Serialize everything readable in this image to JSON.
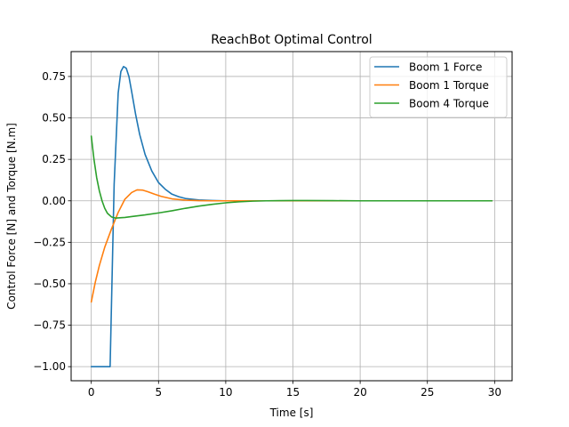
{
  "chart_data": {
    "type": "line",
    "title": "ReachBot Optimal Control",
    "xlabel": "Time [s]",
    "ylabel": "Control Force [N] and Torque [N.m]",
    "xlim": [
      -1.5,
      31.3
    ],
    "ylim": [
      -1.085,
      0.9
    ],
    "xticks": [
      0,
      5,
      10,
      15,
      20,
      25,
      30
    ],
    "xtick_labels": [
      "0",
      "5",
      "10",
      "15",
      "20",
      "25",
      "30"
    ],
    "yticks": [
      -1.0,
      -0.75,
      -0.5,
      -0.25,
      0.0,
      0.25,
      0.5,
      0.75
    ],
    "ytick_labels": [
      "−1.00",
      "−0.75",
      "−0.50",
      "−0.25",
      "0.00",
      "0.25",
      "0.50",
      "0.75"
    ],
    "grid": true,
    "legend": "top-right",
    "series": [
      {
        "name": "Boom 1 Force",
        "color": "#1f77b4",
        "x": [
          0,
          0.5,
          1.0,
          1.4,
          1.7,
          2.0,
          2.2,
          2.4,
          2.6,
          2.8,
          3.0,
          3.3,
          3.6,
          4.0,
          4.5,
          5.0,
          5.5,
          6.0,
          6.5,
          7.0,
          8.0,
          9.0,
          10.0,
          12.0,
          15.0,
          20.0,
          25.0,
          29.8
        ],
        "y": [
          -1.0,
          -1.0,
          -1.0,
          -1.0,
          0.1,
          0.65,
          0.78,
          0.81,
          0.8,
          0.75,
          0.66,
          0.52,
          0.4,
          0.28,
          0.18,
          0.11,
          0.07,
          0.04,
          0.025,
          0.014,
          0.005,
          0.002,
          0.0,
          0.0,
          0.0,
          0.0,
          0.0,
          0.0
        ]
      },
      {
        "name": "Boom 1 Torque",
        "color": "#ff7f0e",
        "x": [
          0,
          0.3,
          0.6,
          1.0,
          1.5,
          2.0,
          2.5,
          3.0,
          3.4,
          3.8,
          4.2,
          4.7,
          5.2,
          6.0,
          7.0,
          8.0,
          9.0,
          10.0,
          12.0,
          15.0,
          20.0,
          25.0,
          29.8
        ],
        "y": [
          -0.61,
          -0.49,
          -0.39,
          -0.28,
          -0.17,
          -0.07,
          0.01,
          0.05,
          0.066,
          0.065,
          0.055,
          0.04,
          0.027,
          0.012,
          0.004,
          0.001,
          0.0,
          0.0,
          0.0,
          0.0,
          0.0,
          0.0,
          0.0
        ]
      },
      {
        "name": "Boom 4 Torque",
        "color": "#2ca02c",
        "x": [
          0,
          0.2,
          0.4,
          0.6,
          0.8,
          1.0,
          1.2,
          1.5,
          1.8,
          2.0,
          2.5,
          3.0,
          4.0,
          5.0,
          6.0,
          7.0,
          8.0,
          9.0,
          10.0,
          11.0,
          12.0,
          13.0,
          14.0,
          15.0,
          16.0,
          18.0,
          20.0,
          25.0,
          29.8
        ],
        "y": [
          0.39,
          0.25,
          0.14,
          0.06,
          0.0,
          -0.045,
          -0.075,
          -0.097,
          -0.104,
          -0.103,
          -0.1,
          -0.095,
          -0.085,
          -0.073,
          -0.06,
          -0.045,
          -0.032,
          -0.021,
          -0.012,
          -0.006,
          -0.002,
          0.0,
          0.001,
          0.002,
          0.002,
          0.001,
          0.0,
          0.0,
          0.0
        ]
      }
    ]
  }
}
